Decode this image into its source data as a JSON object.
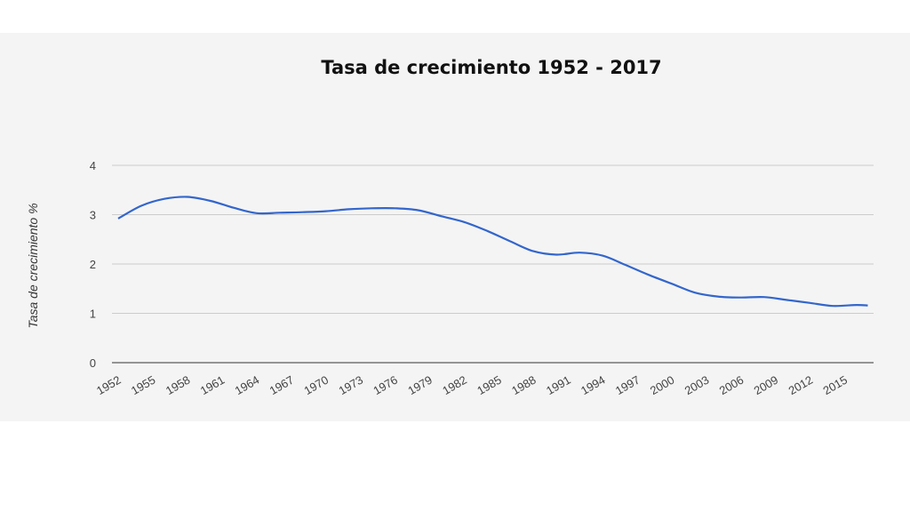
{
  "chart_data": {
    "type": "line",
    "title": "Tasa de crecimiento 1952 - 2017",
    "xlabel": "",
    "ylabel": "Tasa de crecimiento %",
    "ylim": [
      0,
      4
    ],
    "y_ticks": [
      "0",
      "1",
      "2",
      "3",
      "4"
    ],
    "x_ticks": [
      "1952",
      "1955",
      "1958",
      "1961",
      "1964",
      "1967",
      "1970",
      "1973",
      "1976",
      "1979",
      "1982",
      "1985",
      "1988",
      "1991",
      "1994",
      "1997",
      "2000",
      "2003",
      "2006",
      "2009",
      "2012",
      "2015"
    ],
    "grid": true,
    "legend": "none",
    "line_color": "#3366cc",
    "x": [
      1952,
      1954,
      1956,
      1958,
      1960,
      1962,
      1964,
      1966,
      1968,
      1970,
      1972,
      1974,
      1976,
      1978,
      1980,
      1982,
      1984,
      1986,
      1988,
      1990,
      1992,
      1994,
      1996,
      1998,
      2000,
      2002,
      2004,
      2006,
      2008,
      2010,
      2012,
      2014,
      2016,
      2017
    ],
    "values": [
      2.92,
      3.18,
      3.32,
      3.36,
      3.28,
      3.14,
      3.03,
      3.04,
      3.05,
      3.07,
      3.11,
      3.13,
      3.13,
      3.09,
      2.97,
      2.85,
      2.67,
      2.46,
      2.26,
      2.19,
      2.23,
      2.17,
      1.98,
      1.78,
      1.6,
      1.42,
      1.34,
      1.32,
      1.33,
      1.27,
      1.21,
      1.15,
      1.17,
      1.16
    ]
  }
}
